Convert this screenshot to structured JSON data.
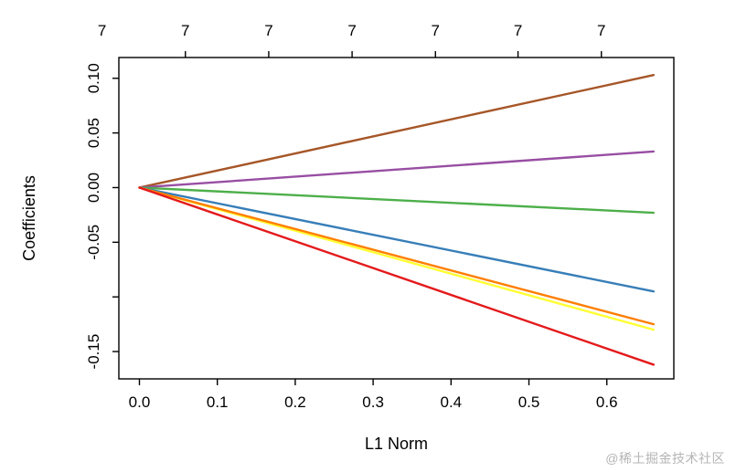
{
  "watermark": {
    "text": "@稀土掘金技术社区",
    "color": "#b5b5b5"
  },
  "chart_data": {
    "type": "line",
    "title": "",
    "xlabel": "L1 Norm",
    "ylabel": "Coefficients",
    "xlim": [
      -0.0264,
      0.686
    ],
    "ylim": [
      -0.175,
      0.119
    ],
    "grid": false,
    "legend": "none",
    "axis_color": "#000000",
    "x_ticks": {
      "values": [
        0.0,
        0.1,
        0.2,
        0.3,
        0.4,
        0.5,
        0.6
      ],
      "labels": [
        "0.0",
        "0.1",
        "0.2",
        "0.3",
        "0.4",
        "0.5",
        "0.6"
      ]
    },
    "y_ticks": {
      "values": [
        0.1,
        0.05,
        0.0,
        -0.05,
        -0.1,
        -0.15
      ],
      "labels": [
        "0.10",
        "0.05",
        "0.00",
        "-0.05",
        "",
        "-0.15"
      ]
    },
    "top_axis": {
      "values": [
        -0.048,
        0.059,
        0.166,
        0.273,
        0.38,
        0.486,
        0.593
      ],
      "labels": [
        "7",
        "7",
        "7",
        "7",
        "7",
        "7",
        "7"
      ]
    },
    "x": [
      0.0,
      0.66
    ],
    "series": [
      {
        "name": "brown",
        "color": "#A65628",
        "y": [
          0.0,
          0.103
        ]
      },
      {
        "name": "purple",
        "color": "#984EA3",
        "y": [
          0.0,
          0.033
        ]
      },
      {
        "name": "green",
        "color": "#4DAF4A",
        "y": [
          0.0,
          -0.023
        ]
      },
      {
        "name": "blue",
        "color": "#377EB8",
        "y": [
          0.0,
          -0.095
        ]
      },
      {
        "name": "yellow",
        "color": "#FFFF33",
        "y": [
          0.0,
          -0.13
        ]
      },
      {
        "name": "orange",
        "color": "#FF7F00",
        "y": [
          0.0,
          -0.125
        ]
      },
      {
        "name": "red",
        "color": "#E41A1C",
        "y": [
          0.0,
          -0.162
        ]
      }
    ]
  }
}
